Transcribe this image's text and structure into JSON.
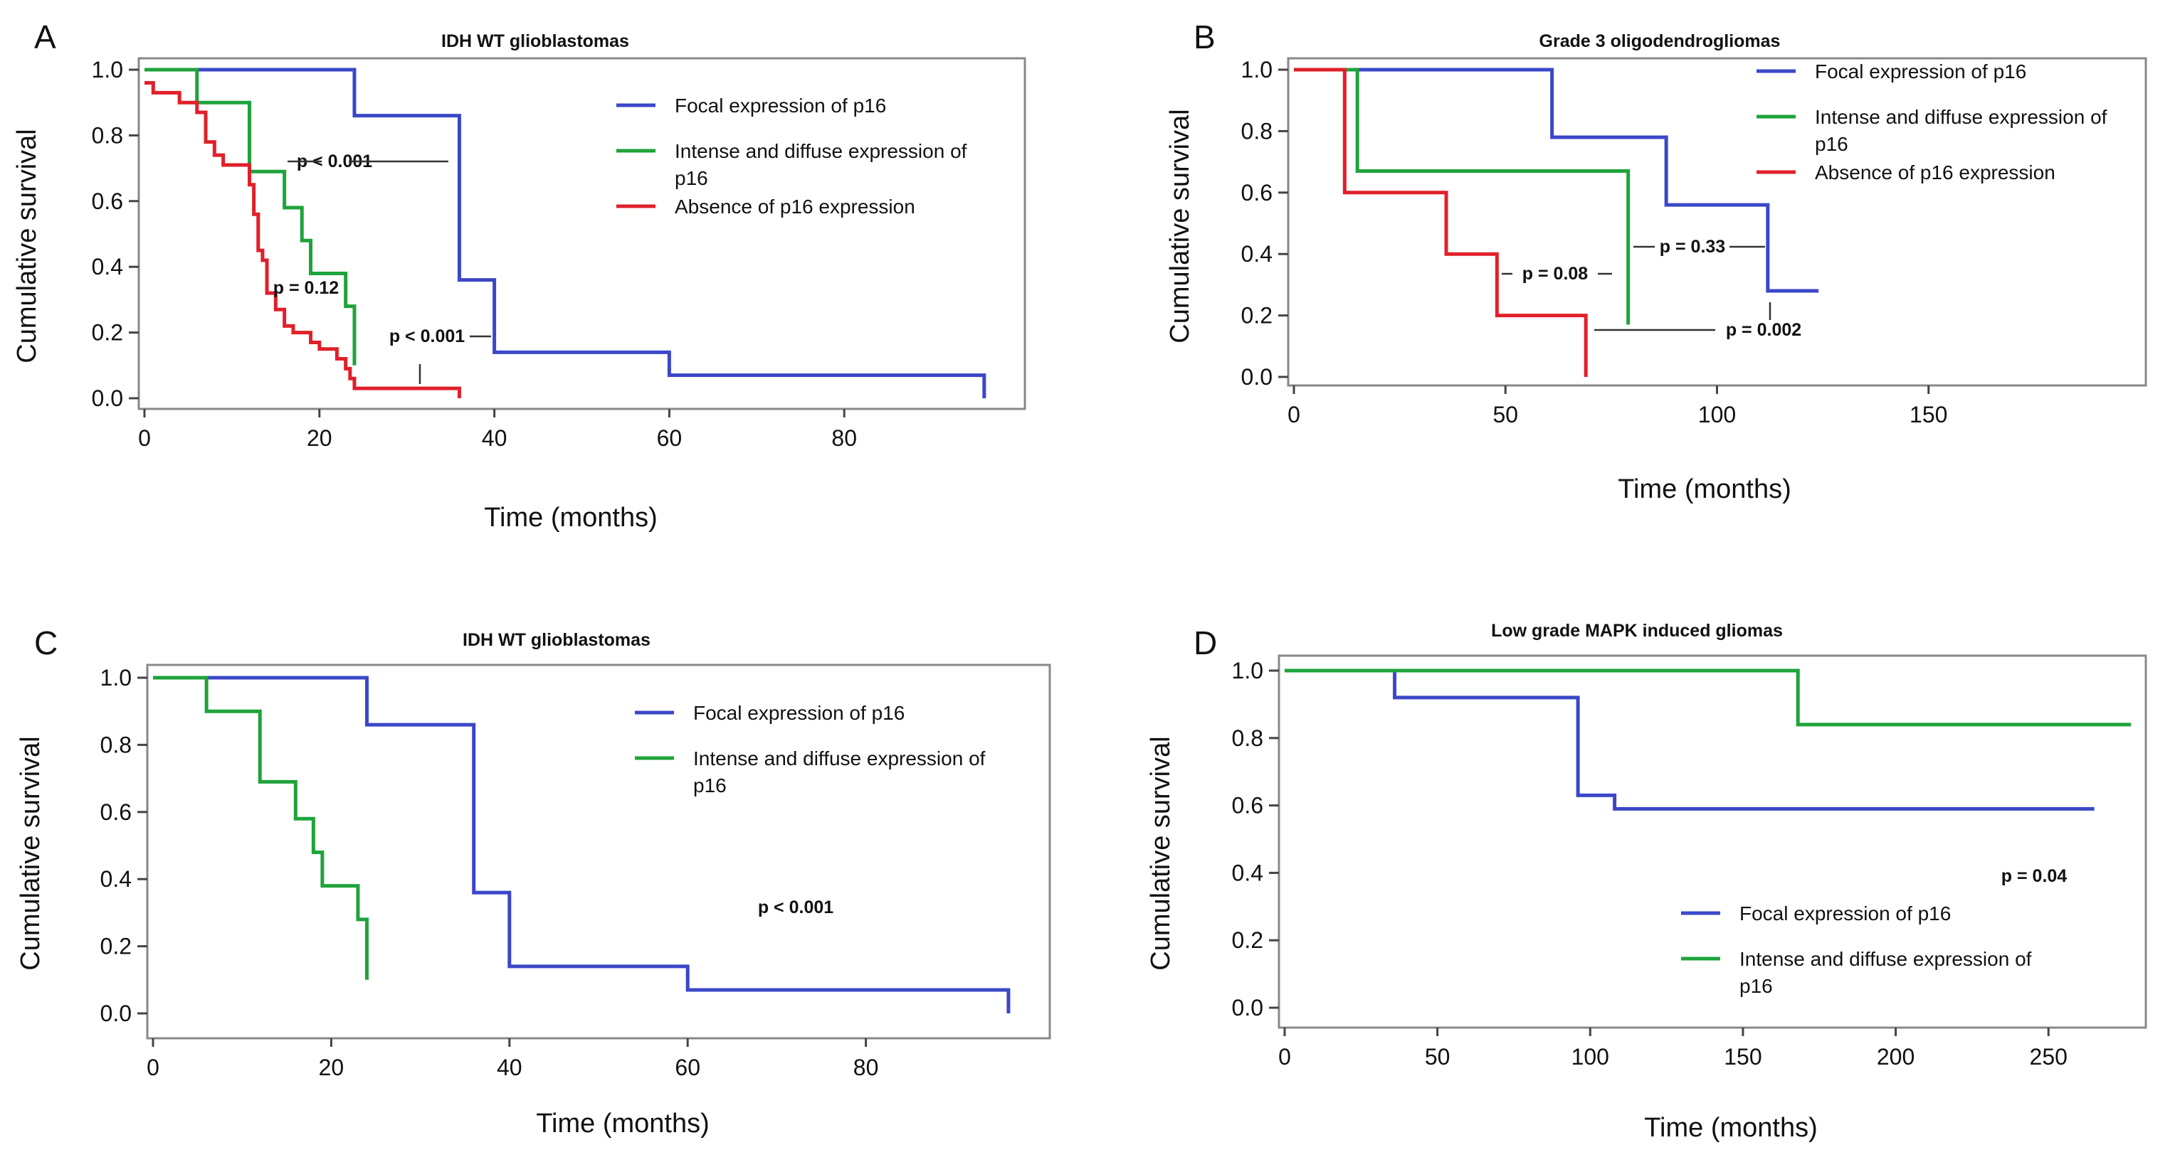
{
  "chart_data": [
    {
      "type": "line",
      "panel": "A",
      "title": "IDH WT glioblastomas",
      "xlabel": "Time (months)",
      "ylabel": "Cumulative survival",
      "xlim": [
        0,
        100
      ],
      "ylim": [
        0,
        1.05
      ],
      "xticks": [
        0,
        20,
        40,
        60,
        80
      ],
      "xtick_labels": [
        "0",
        "20",
        "40",
        "60",
        "80"
      ],
      "yticks": [
        0,
        0.2,
        0.4,
        0.6,
        0.8,
        1.0
      ],
      "ytick_labels": [
        "0.0",
        "0.2",
        "0.4",
        "0.6",
        "0.8",
        "1.0"
      ],
      "legend_position": "top-right",
      "series": [
        {
          "name": "Focal expression of p16",
          "legend_lines": [
            "Focal expression of p16"
          ],
          "color": "#3b47c8",
          "steps": [
            [
              0,
              1.0
            ],
            [
              24,
              0.86
            ],
            [
              36,
              0.36
            ],
            [
              40,
              0.14
            ],
            [
              60,
              0.07
            ],
            [
              96,
              0.0
            ]
          ]
        },
        {
          "name": "Intense and diffuse expression of p16",
          "legend_lines": [
            "Intense and diffuse expression of",
            "p16"
          ],
          "color": "#1fa33b",
          "steps": [
            [
              0,
              1.0
            ],
            [
              6,
              0.9
            ],
            [
              12,
              0.69
            ],
            [
              16,
              0.58
            ],
            [
              18,
              0.48
            ],
            [
              19,
              0.38
            ],
            [
              23,
              0.28
            ],
            [
              24,
              0.1
            ]
          ]
        },
        {
          "name": "Absence of p16 expression",
          "legend_lines": [
            "Absence of p16 expression"
          ],
          "color": "#e0202a",
          "steps": [
            [
              0,
              0.96
            ],
            [
              1,
              0.93
            ],
            [
              4,
              0.9
            ],
            [
              6,
              0.87
            ],
            [
              7,
              0.78
            ],
            [
              8,
              0.74
            ],
            [
              9,
              0.71
            ],
            [
              12,
              0.65
            ],
            [
              12.5,
              0.56
            ],
            [
              13,
              0.45
            ],
            [
              13.5,
              0.42
            ],
            [
              14,
              0.32
            ],
            [
              15,
              0.27
            ],
            [
              16,
              0.22
            ],
            [
              17,
              0.2
            ],
            [
              19,
              0.17
            ],
            [
              20,
              0.15
            ],
            [
              22,
              0.12
            ],
            [
              23,
              0.09
            ],
            [
              23.5,
              0.06
            ],
            [
              24,
              0.03
            ],
            [
              36,
              0.0
            ]
          ]
        }
      ],
      "annotations": [
        {
          "text": "p < 0.001",
          "x": 26,
          "y": 0.71
        },
        {
          "text": "p = 0.12",
          "x": 19,
          "y": 0.66
        },
        {
          "text": "p < 0.001",
          "x": 32,
          "y": 0.35
        }
      ]
    },
    {
      "type": "line",
      "panel": "B",
      "title": "Grade 3 oligodendrogliomas",
      "xlabel": "Time (months)",
      "ylabel": "Cumulative survival",
      "xlim": [
        0,
        200
      ],
      "ylim": [
        0,
        1.05
      ],
      "xticks": [
        0,
        50,
        100,
        150
      ],
      "xtick_labels": [
        "0",
        "50",
        "100",
        "150"
      ],
      "yticks": [
        0,
        0.2,
        0.4,
        0.6,
        0.8,
        1.0
      ],
      "ytick_labels": [
        "0.0",
        "0.2",
        "0.4",
        "0.6",
        "0.8",
        "1.0"
      ],
      "legend_position": "top-right",
      "series": [
        {
          "name": "Focal expression of p16",
          "legend_lines": [
            "Focal expression of p16"
          ],
          "color": "#3b47c8",
          "steps": [
            [
              0,
              1.0
            ],
            [
              61,
              0.78
            ],
            [
              88,
              0.56
            ],
            [
              112,
              0.28
            ],
            [
              124,
              0.28
            ]
          ]
        },
        {
          "name": "Intense and diffuse expression of p16",
          "legend_lines": [
            "Intense and diffuse expression of",
            "p16"
          ],
          "color": "#1fa33b",
          "steps": [
            [
              0,
              1.0
            ],
            [
              15,
              0.67
            ],
            [
              79,
              0.17
            ]
          ]
        },
        {
          "name": "Absence of p16 expression",
          "legend_lines": [
            "Absence of p16 expression"
          ],
          "color": "#e0202a",
          "steps": [
            [
              0,
              1.0
            ],
            [
              12,
              0.6
            ],
            [
              36,
              0.4
            ],
            [
              48,
              0.2
            ],
            [
              69,
              0.0
            ]
          ]
        }
      ],
      "annotations": [
        {
          "text": "p = 0.08",
          "x": 63,
          "y": 0.31
        },
        {
          "text": "p = 0.33",
          "x": 95,
          "y": 0.4
        },
        {
          "text": "p = 0.002",
          "x": 112,
          "y": 0.13
        }
      ]
    },
    {
      "type": "line",
      "panel": "C",
      "title": "IDH WT glioblastomas",
      "xlabel": "Time (months)",
      "ylabel": "Cumulative survival",
      "xlim": [
        0,
        100
      ],
      "ylim": [
        0,
        1.05
      ],
      "xticks": [
        0,
        20,
        40,
        60,
        80
      ],
      "xtick_labels": [
        "0",
        "20",
        "40",
        "60",
        "80"
      ],
      "yticks": [
        0,
        0.2,
        0.4,
        0.6,
        0.8,
        1.0
      ],
      "ytick_labels": [
        "0.0",
        "0.2",
        "0.4",
        "0.6",
        "0.8",
        "1.0"
      ],
      "legend_position": "top-right",
      "series": [
        {
          "name": "Focal expression of p16",
          "legend_lines": [
            "Focal expression of p16"
          ],
          "color": "#3b47c8",
          "steps": [
            [
              0,
              1.0
            ],
            [
              24,
              0.86
            ],
            [
              36,
              0.36
            ],
            [
              40,
              0.14
            ],
            [
              60,
              0.07
            ],
            [
              96,
              0.0
            ]
          ]
        },
        {
          "name": "Intense and diffuse expression of p16",
          "legend_lines": [
            "Intense and diffuse expression of",
            "p16"
          ],
          "color": "#1fa33b",
          "steps": [
            [
              0,
              1.0
            ],
            [
              6,
              0.9
            ],
            [
              12,
              0.69
            ],
            [
              16,
              0.58
            ],
            [
              18,
              0.48
            ],
            [
              19,
              0.38
            ],
            [
              23,
              0.28
            ],
            [
              24,
              0.1
            ]
          ]
        }
      ],
      "annotations": [
        {
          "text": "p < 0.001",
          "x": 73,
          "y": 0.3
        }
      ]
    },
    {
      "type": "line",
      "panel": "D",
      "title": "Low grade MAPK induced gliomas",
      "xlabel": "Time (months)",
      "ylabel": "Cumulative survival",
      "xlim": [
        0,
        280
      ],
      "ylim": [
        0,
        1.05
      ],
      "xticks": [
        0,
        50,
        100,
        150,
        200,
        250
      ],
      "xtick_labels": [
        "0",
        "50",
        "100",
        "150",
        "200",
        "250"
      ],
      "yticks": [
        0,
        0.2,
        0.4,
        0.6,
        0.8,
        1.0
      ],
      "ytick_labels": [
        "0.0",
        "0.2",
        "0.4",
        "0.6",
        "0.8",
        "1.0"
      ],
      "legend_position": "bottom-right",
      "series": [
        {
          "name": "Focal expression of p16",
          "legend_lines": [
            "Focal expression of p16"
          ],
          "color": "#3b47c8",
          "steps": [
            [
              0,
              1.0
            ],
            [
              36,
              0.92
            ],
            [
              96,
              0.63
            ],
            [
              108,
              0.59
            ],
            [
              265,
              0.59
            ]
          ]
        },
        {
          "name": "Intense and diffuse expression of p16",
          "legend_lines": [
            "Intense and diffuse expression of",
            "p16"
          ],
          "color": "#1fa33b",
          "steps": [
            [
              0,
              1.0
            ],
            [
              168,
              0.84
            ],
            [
              277,
              0.84
            ]
          ]
        }
      ],
      "annotations": [
        {
          "text": "p = 0.04",
          "x": 237,
          "y": 0.38
        }
      ]
    }
  ]
}
